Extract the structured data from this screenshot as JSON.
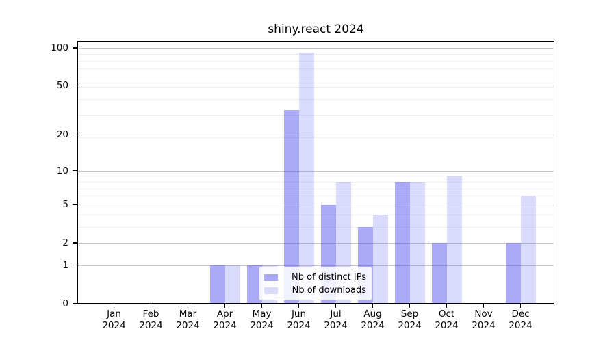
{
  "title": "shiny.react 2024",
  "chart_data": {
    "type": "bar",
    "title": "shiny.react 2024",
    "categories": [
      "Jan 2024",
      "Feb 2024",
      "Mar 2024",
      "Apr 2024",
      "May 2024",
      "Jun 2024",
      "Jul 2024",
      "Aug 2024",
      "Sep 2024",
      "Oct 2024",
      "Nov 2024",
      "Dec 2024"
    ],
    "series": [
      {
        "name": "Nb of distinct IPs",
        "values": [
          0,
          0,
          0,
          1,
          1,
          32,
          5,
          3,
          8,
          2,
          0,
          2
        ],
        "swatch_color": "#a9a9f2",
        "fill": "rgba(85,85,240,0.5)"
      },
      {
        "name": "Nb of downloads",
        "values": [
          0,
          0,
          0,
          1,
          1,
          92,
          8,
          4,
          8,
          9,
          0,
          6
        ],
        "swatch_color": "#d9d9f8",
        "fill": "rgba(85,85,240,0.22)"
      }
    ],
    "y_scale": "log10(value+1)",
    "y_ticks": [
      0,
      1,
      2,
      5,
      10,
      20,
      50,
      100
    ],
    "y_minor_gridlines": [
      3,
      4,
      6,
      7,
      8,
      9,
      19,
      29,
      39,
      49,
      59,
      69,
      79,
      89
    ],
    "ylim": [
      0,
      113
    ],
    "xlabel": "",
    "ylabel": "",
    "grid": true,
    "legend_position": "lower center"
  },
  "colors": {
    "bar_dark": "rgba(85,85,240,0.5)",
    "bar_light": "rgba(85,85,240,0.22)",
    "major_grid": "#c4c4c4",
    "minor_grid": "#efefef",
    "spine": "#000000"
  }
}
